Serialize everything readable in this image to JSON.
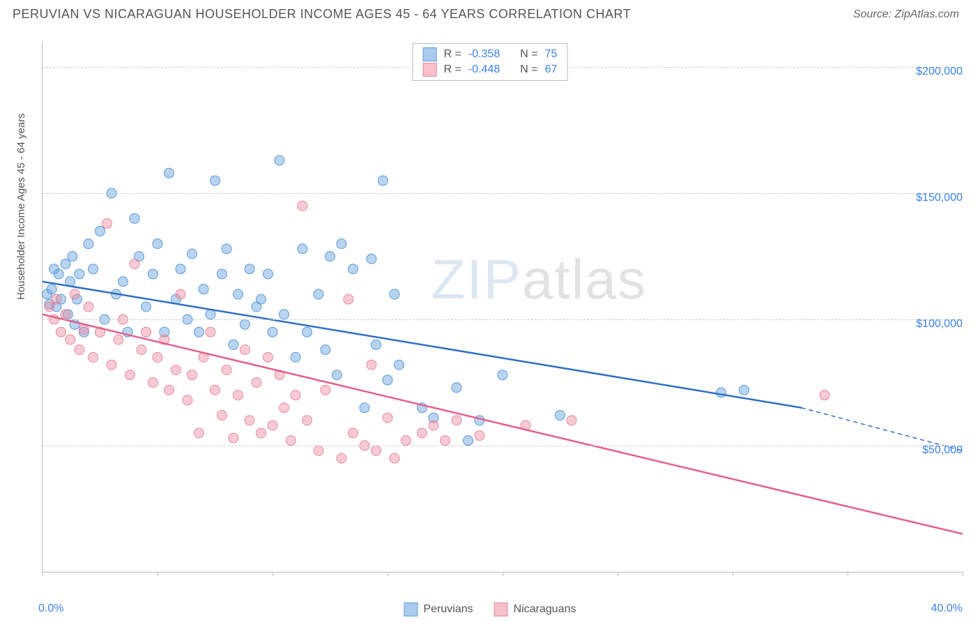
{
  "header": {
    "title": "PERUVIAN VS NICARAGUAN HOUSEHOLDER INCOME AGES 45 - 64 YEARS CORRELATION CHART",
    "source": "Source: ZipAtlas.com"
  },
  "watermark": {
    "bold": "ZIP",
    "thin": "atlas"
  },
  "chart": {
    "type": "scatter",
    "ylabel": "Householder Income Ages 45 - 64 years",
    "xlim": [
      0,
      40
    ],
    "ylim": [
      0,
      210000
    ],
    "x_axis_min_label": "0.0%",
    "x_axis_max_label": "40.0%",
    "y_ticks": [
      50000,
      100000,
      150000,
      200000
    ],
    "y_tick_labels": [
      "$50,000",
      "$100,000",
      "$150,000",
      "$200,000"
    ],
    "x_tick_positions": [
      0,
      5,
      10,
      15,
      20,
      25,
      30,
      35,
      40
    ],
    "background_color": "#ffffff",
    "grid_color": "#cccccc",
    "axis_color": "#bbbbbb",
    "label_color": "#555555",
    "value_color": "#3b82f6",
    "marker_radius": 7,
    "marker_opacity": 0.55,
    "line_width": 2.5,
    "series": [
      {
        "name": "Peruvians",
        "color_fill": "rgba(100,160,225,0.45)",
        "color_stroke": "#5a9bd8",
        "line_color": "#2e6fc7",
        "R": "-0.358",
        "N": "75",
        "trend": {
          "x1": 0,
          "y1": 115000,
          "x2": 33,
          "y2": 65000,
          "x2_dash": 40,
          "y2_dash": 48000
        },
        "points": [
          [
            0.2,
            110000
          ],
          [
            0.3,
            106000
          ],
          [
            0.4,
            112000
          ],
          [
            0.5,
            120000
          ],
          [
            0.6,
            105000
          ],
          [
            0.7,
            118000
          ],
          [
            0.8,
            108000
          ],
          [
            1.0,
            122000
          ],
          [
            1.1,
            102000
          ],
          [
            1.2,
            115000
          ],
          [
            1.3,
            125000
          ],
          [
            1.4,
            98000
          ],
          [
            1.5,
            108000
          ],
          [
            1.6,
            118000
          ],
          [
            1.8,
            95000
          ],
          [
            2.0,
            130000
          ],
          [
            2.2,
            120000
          ],
          [
            2.5,
            135000
          ],
          [
            2.7,
            100000
          ],
          [
            3.0,
            150000
          ],
          [
            3.2,
            110000
          ],
          [
            3.5,
            115000
          ],
          [
            3.7,
            95000
          ],
          [
            4.0,
            140000
          ],
          [
            4.2,
            125000
          ],
          [
            4.5,
            105000
          ],
          [
            4.8,
            118000
          ],
          [
            5.0,
            130000
          ],
          [
            5.3,
            95000
          ],
          [
            5.5,
            158000
          ],
          [
            5.8,
            108000
          ],
          [
            6.0,
            120000
          ],
          [
            6.3,
            100000
          ],
          [
            6.5,
            126000
          ],
          [
            6.8,
            95000
          ],
          [
            7.0,
            112000
          ],
          [
            7.3,
            102000
          ],
          [
            7.5,
            155000
          ],
          [
            7.8,
            118000
          ],
          [
            8.0,
            128000
          ],
          [
            8.3,
            90000
          ],
          [
            8.5,
            110000
          ],
          [
            8.8,
            98000
          ],
          [
            9.0,
            120000
          ],
          [
            9.3,
            105000
          ],
          [
            9.5,
            108000
          ],
          [
            9.8,
            118000
          ],
          [
            10.0,
            95000
          ],
          [
            10.3,
            163000
          ],
          [
            10.5,
            102000
          ],
          [
            11.0,
            85000
          ],
          [
            11.3,
            128000
          ],
          [
            11.5,
            95000
          ],
          [
            12.0,
            110000
          ],
          [
            12.3,
            88000
          ],
          [
            12.5,
            125000
          ],
          [
            12.8,
            78000
          ],
          [
            13.0,
            130000
          ],
          [
            13.5,
            120000
          ],
          [
            14.0,
            65000
          ],
          [
            14.3,
            124000
          ],
          [
            14.5,
            90000
          ],
          [
            14.8,
            155000
          ],
          [
            15.0,
            76000
          ],
          [
            15.3,
            110000
          ],
          [
            15.5,
            82000
          ],
          [
            16.5,
            65000
          ],
          [
            17.0,
            61000
          ],
          [
            18.0,
            73000
          ],
          [
            18.5,
            52000
          ],
          [
            19.0,
            60000
          ],
          [
            20.0,
            78000
          ],
          [
            22.5,
            62000
          ],
          [
            29.5,
            71000
          ],
          [
            30.5,
            72000
          ]
        ]
      },
      {
        "name": "Nicaraguans",
        "color_fill": "rgba(240,140,160,0.45)",
        "color_stroke": "#e68aa0",
        "line_color": "#e85d8a",
        "R": "-0.448",
        "N": "67",
        "trend": {
          "x1": 0,
          "y1": 102000,
          "x2": 40,
          "y2": 15000,
          "x2_dash": 40,
          "y2_dash": 15000
        },
        "points": [
          [
            0.3,
            105000
          ],
          [
            0.5,
            100000
          ],
          [
            0.6,
            108000
          ],
          [
            0.8,
            95000
          ],
          [
            1.0,
            102000
          ],
          [
            1.2,
            92000
          ],
          [
            1.4,
            110000
          ],
          [
            1.6,
            88000
          ],
          [
            1.8,
            96000
          ],
          [
            2.0,
            105000
          ],
          [
            2.2,
            85000
          ],
          [
            2.5,
            95000
          ],
          [
            2.8,
            138000
          ],
          [
            3.0,
            82000
          ],
          [
            3.3,
            92000
          ],
          [
            3.5,
            100000
          ],
          [
            3.8,
            78000
          ],
          [
            4.0,
            122000
          ],
          [
            4.3,
            88000
          ],
          [
            4.5,
            95000
          ],
          [
            4.8,
            75000
          ],
          [
            5.0,
            85000
          ],
          [
            5.3,
            92000
          ],
          [
            5.5,
            72000
          ],
          [
            5.8,
            80000
          ],
          [
            6.0,
            110000
          ],
          [
            6.3,
            68000
          ],
          [
            6.5,
            78000
          ],
          [
            6.8,
            55000
          ],
          [
            7.0,
            85000
          ],
          [
            7.3,
            95000
          ],
          [
            7.5,
            72000
          ],
          [
            7.8,
            62000
          ],
          [
            8.0,
            80000
          ],
          [
            8.3,
            53000
          ],
          [
            8.5,
            70000
          ],
          [
            8.8,
            88000
          ],
          [
            9.0,
            60000
          ],
          [
            9.3,
            75000
          ],
          [
            9.5,
            55000
          ],
          [
            9.8,
            85000
          ],
          [
            10.0,
            58000
          ],
          [
            10.3,
            78000
          ],
          [
            10.5,
            65000
          ],
          [
            10.8,
            52000
          ],
          [
            11.0,
            70000
          ],
          [
            11.3,
            145000
          ],
          [
            11.5,
            60000
          ],
          [
            12.0,
            48000
          ],
          [
            12.3,
            72000
          ],
          [
            13.0,
            45000
          ],
          [
            13.3,
            108000
          ],
          [
            13.5,
            55000
          ],
          [
            14.0,
            50000
          ],
          [
            14.3,
            82000
          ],
          [
            14.5,
            48000
          ],
          [
            15.0,
            61000
          ],
          [
            15.3,
            45000
          ],
          [
            15.8,
            52000
          ],
          [
            16.5,
            55000
          ],
          [
            17.0,
            58000
          ],
          [
            17.5,
            52000
          ],
          [
            18.0,
            60000
          ],
          [
            19.0,
            54000
          ],
          [
            21.0,
            58000
          ],
          [
            23.0,
            60000
          ],
          [
            34.0,
            70000
          ]
        ]
      }
    ],
    "stats_labels": {
      "R": "R =",
      "N": "N ="
    },
    "legend_labels": [
      "Peruvians",
      "Nicaraguans"
    ]
  }
}
